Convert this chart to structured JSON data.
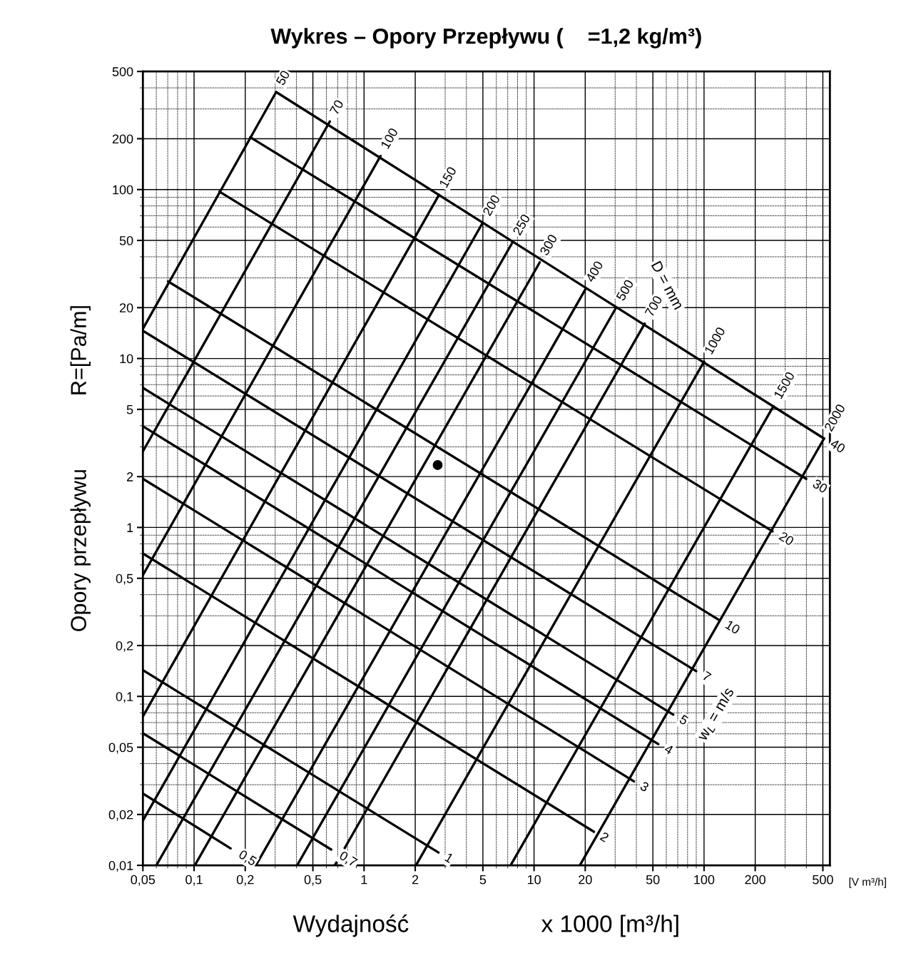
{
  "chart_data": {
    "type": "line",
    "title": "Wykres – Opory Przepływu (    =1,2 kg/m³)",
    "xlabel": "Wydajność                    x 1000 [m³/h]",
    "ylabel": "Opory przepływu            R=[Pa/m]",
    "log": "xy",
    "grid": true,
    "line_style": "solid",
    "xlim": [
      0.05,
      550
    ],
    "ylim": [
      0.01,
      500
    ],
    "xticks": [
      {
        "value": 0.05,
        "label": "0,05"
      },
      {
        "value": 0.1,
        "label": "0,1"
      },
      {
        "value": 0.2,
        "label": "0,2"
      },
      {
        "value": 0.5,
        "label": "0,5"
      },
      1,
      2,
      5,
      10,
      20,
      50,
      100,
      200,
      500
    ],
    "yticks": [
      {
        "value": 0.01,
        "label": "0,01"
      },
      {
        "value": 0.02,
        "label": "0,02"
      },
      {
        "value": 0.05,
        "label": "0,05"
      },
      {
        "value": 0.1,
        "label": "0,1"
      },
      {
        "value": 0.2,
        "label": "0,2"
      },
      {
        "value": 0.5,
        "label": "0,5"
      },
      1,
      2,
      5,
      10,
      20,
      50,
      100,
      200,
      500
    ],
    "annotations": [
      "D = mm",
      "w$_{L}$ = m/s",
      "[V m³/h]"
    ],
    "series": [
      {
        "name": "50",
        "color": "#000000",
        "x": [
          0.05,
          0.304
        ],
        "values": [
          15.0,
          378
        ]
      },
      {
        "name": "70",
        "color": "#000000",
        "x": [
          0.05,
          0.629
        ],
        "values": [
          2.82,
          253
        ]
      },
      {
        "name": "100",
        "color": "#000000",
        "x": [
          0.05,
          1.25
        ],
        "values": [
          0.522,
          158
        ]
      },
      {
        "name": "150",
        "color": "#000000",
        "x": [
          0.05,
          2.76
        ],
        "values": [
          0.0761,
          93.1
        ]
      },
      {
        "name": "200",
        "color": "#000000",
        "x": [
          0.05,
          4.98
        ],
        "values": [
          0.0184,
          63.5
        ]
      },
      {
        "name": "250",
        "color": "#000000",
        "x": [
          0.06,
          7.48
        ],
        "values": [
          0.01,
          48.8
        ]
      },
      {
        "name": "300",
        "color": "#000000",
        "x": [
          0.101,
          10.8
        ],
        "values": [
          0.01,
          37.1
        ]
      },
      {
        "name": "400",
        "color": "#000000",
        "x": [
          0.231,
          20.1
        ],
        "values": [
          0.01,
          25.8
        ]
      },
      {
        "name": "500",
        "color": "#000000",
        "x": [
          0.404,
          30.4
        ],
        "values": [
          0.01,
          20.0
        ]
      },
      {
        "name": "700",
        "color": "#000000",
        "x": [
          0.673,
          44.8
        ],
        "values": [
          0.01,
          16.1
        ]
      },
      {
        "name": "1000",
        "color": "#000000",
        "x": [
          2.02,
          100
        ],
        "values": [
          0.01,
          9.59
        ]
      },
      {
        "name": "1500",
        "color": "#000000",
        "x": [
          7.28,
          256
        ],
        "values": [
          0.01,
          5.22
        ]
      },
      {
        "name": "2000",
        "color": "#000000",
        "x": [
          18.6,
          508
        ],
        "values": [
          0.01,
          3.36
        ]
      },
      {
        "name": "40",
        "color": "#000000",
        "x": [
          0.304,
          508
        ],
        "values": [
          378,
          3.36
        ]
      },
      {
        "name": "30",
        "color": "#000000",
        "x": [
          0.214,
          399
        ],
        "values": [
          204,
          1.94
        ]
      },
      {
        "name": "20",
        "color": "#000000",
        "x": [
          0.141,
          253
        ],
        "values": [
          97.3,
          0.949
        ]
      },
      {
        "name": "10",
        "color": "#000000",
        "x": [
          0.0703,
          122
        ],
        "values": [
          28.6,
          0.284
        ]
      },
      {
        "name": "7",
        "color": "#000000",
        "x": [
          0.05,
          89.9
        ],
        "values": [
          14.6,
          0.141
        ]
      },
      {
        "name": "5",
        "color": "#000000",
        "x": [
          0.05,
          65.9
        ],
        "values": [
          6.7,
          0.078
        ]
      },
      {
        "name": "4",
        "color": "#000000",
        "x": [
          0.05,
          53.8
        ],
        "values": [
          3.97,
          0.0522
        ]
      },
      {
        "name": "3",
        "color": "#000000",
        "x": [
          0.05,
          38.7
        ],
        "values": [
          1.94,
          0.0314
        ]
      },
      {
        "name": "2",
        "color": "#000000",
        "x": [
          0.05,
          22.5
        ],
        "values": [
          0.701,
          0.0158
        ]
      },
      {
        "name": "1",
        "color": "#000000",
        "x": [
          0.05,
          2.74
        ],
        "values": [
          0.143,
          0.0119
        ]
      },
      {
        "name": "0,7",
        "color": "#000000",
        "x": [
          0.05,
          0.641
        ],
        "values": [
          0.0605,
          0.0124
        ]
      },
      {
        "name": "0,5",
        "color": "#000000",
        "x": [
          0.05,
          0.164
        ],
        "values": [
          0.0266,
          0.0126
        ]
      },
      {
        "type": "scatter",
        "marker": "circle",
        "color": "#000000",
        "x": [
          2.71
        ],
        "values": [
          2.34
        ]
      }
    ]
  }
}
